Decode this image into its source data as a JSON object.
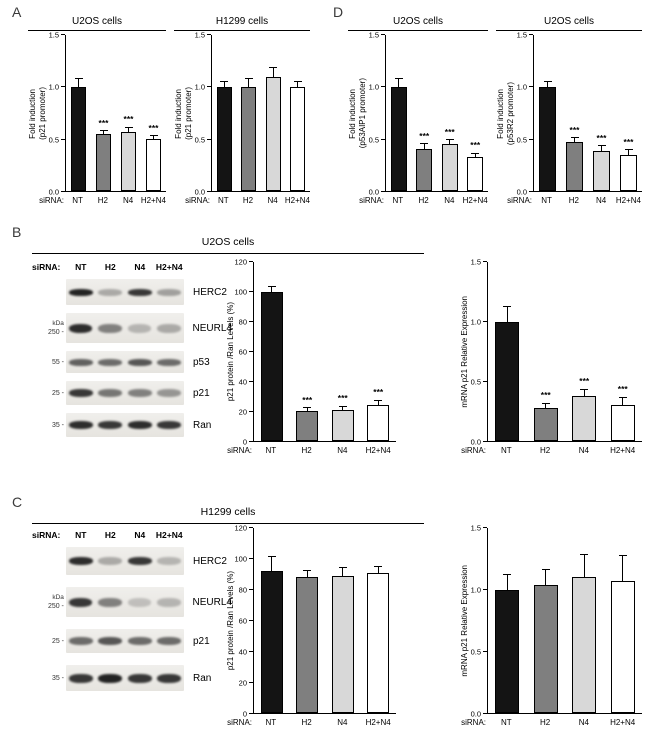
{
  "panels": {
    "A": {
      "label": "A"
    },
    "B": {
      "label": "B",
      "title": "U2OS cells"
    },
    "C": {
      "label": "C",
      "title": "H1299 cells"
    },
    "D": {
      "label": "D"
    }
  },
  "bar_colors": [
    "#141414",
    "#7f7f7f",
    "#d8d8d8",
    "#ffffff"
  ],
  "chart_data": [
    {
      "type": "bar",
      "panel": "A",
      "title": "U2OS cells",
      "ylabel_lines": [
        "Fold induction",
        "(p21 promoter)"
      ],
      "categories": [
        "NT",
        "H2",
        "N4",
        "H2+N4"
      ],
      "x_prefix": "siRNA:",
      "values": [
        1.0,
        0.55,
        0.57,
        0.5
      ],
      "errors": [
        0.08,
        0.03,
        0.04,
        0.03
      ],
      "sig": [
        "",
        "***",
        "***",
        "***"
      ],
      "ylim": [
        0,
        1.5
      ],
      "yticks": [
        0,
        0.5,
        1.0,
        1.5
      ],
      "ytick_format": "1dp"
    },
    {
      "type": "bar",
      "panel": "A",
      "title": "H1299 cells",
      "ylabel_lines": [
        "Fold induction",
        "(p21 promoter)"
      ],
      "categories": [
        "NT",
        "H2",
        "N4",
        "H2+N4"
      ],
      "x_prefix": "siRNA:",
      "values": [
        1.0,
        1.0,
        1.1,
        1.0
      ],
      "errors": [
        0.05,
        0.08,
        0.08,
        0.05
      ],
      "sig": [
        "",
        "",
        "",
        ""
      ],
      "ylim": [
        0,
        1.5
      ],
      "yticks": [
        0,
        0.5,
        1.0,
        1.5
      ],
      "ytick_format": "1dp"
    },
    {
      "type": "bar",
      "panel": "D",
      "title": "U2OS cells",
      "ylabel_lines": [
        "Fold induction",
        "(p53AIP1 promoter)"
      ],
      "categories": [
        "NT",
        "H2",
        "N4",
        "H2+N4"
      ],
      "x_prefix": "siRNA:",
      "values": [
        1.0,
        0.4,
        0.45,
        0.33
      ],
      "errors": [
        0.08,
        0.05,
        0.04,
        0.03
      ],
      "sig": [
        "",
        "***",
        "***",
        "***"
      ],
      "ylim": [
        0,
        1.5
      ],
      "yticks": [
        0,
        0.5,
        1.0,
        1.5
      ],
      "ytick_format": "1dp"
    },
    {
      "type": "bar",
      "panel": "D",
      "title": "U2OS cells",
      "ylabel_lines": [
        "Fold induction",
        "(p53R2 promoter)"
      ],
      "categories": [
        "NT",
        "H2",
        "N4",
        "H2+N4"
      ],
      "x_prefix": "siRNA:",
      "values": [
        1.0,
        0.47,
        0.38,
        0.35
      ],
      "errors": [
        0.05,
        0.04,
        0.05,
        0.04
      ],
      "sig": [
        "",
        "***",
        "***",
        "***"
      ],
      "ylim": [
        0,
        1.5
      ],
      "yticks": [
        0,
        0.5,
        1.0,
        1.5
      ],
      "ytick_format": "1dp"
    },
    {
      "type": "bar",
      "panel": "B",
      "title": "",
      "ylabel_lines": [
        "p21 protein /Ran Levels (%)"
      ],
      "categories": [
        "NT",
        "H2",
        "N4",
        "H2+N4"
      ],
      "x_prefix": "siRNA:",
      "values": [
        100,
        20,
        21,
        24
      ],
      "errors": [
        3,
        2,
        2,
        3
      ],
      "sig": [
        "",
        "***",
        "***",
        "***"
      ],
      "ylim": [
        0,
        120
      ],
      "yticks": [
        0,
        20,
        40,
        60,
        80,
        100,
        120
      ],
      "ytick_format": "int"
    },
    {
      "type": "bar",
      "panel": "B",
      "title": "",
      "ylabel_lines": [
        "mRNA p21 Relative Expression"
      ],
      "categories": [
        "NT",
        "H2",
        "N4",
        "H2+N4"
      ],
      "x_prefix": "siRNA:",
      "values": [
        1.0,
        0.28,
        0.38,
        0.3
      ],
      "errors": [
        0.12,
        0.03,
        0.05,
        0.06
      ],
      "sig": [
        "",
        "***",
        "***",
        "***"
      ],
      "ylim": [
        0,
        1.5
      ],
      "yticks": [
        0,
        0.5,
        1.0,
        1.5
      ],
      "ytick_format": "1dp"
    },
    {
      "type": "bar",
      "panel": "C",
      "title": "",
      "ylabel_lines": [
        "p21 protein /Ran Levels (%)"
      ],
      "categories": [
        "NT",
        "H2",
        "N4",
        "H2+N4"
      ],
      "x_prefix": "siRNA:",
      "values": [
        92,
        88,
        89,
        91
      ],
      "errors": [
        9,
        4,
        5,
        4
      ],
      "sig": [
        "",
        "",
        "",
        ""
      ],
      "ylim": [
        0,
        120
      ],
      "yticks": [
        0,
        20,
        40,
        60,
        80,
        100,
        120
      ],
      "ytick_format": "int"
    },
    {
      "type": "bar",
      "panel": "C",
      "title": "",
      "ylabel_lines": [
        "mRNA p21 Relative Expression"
      ],
      "categories": [
        "NT",
        "H2",
        "N4",
        "H2+N4"
      ],
      "x_prefix": "siRNA:",
      "values": [
        1.0,
        1.04,
        1.1,
        1.07
      ],
      "errors": [
        0.12,
        0.12,
        0.18,
        0.2
      ],
      "sig": [
        "",
        "",
        "",
        ""
      ],
      "ylim": [
        0,
        1.5
      ],
      "yticks": [
        0,
        0.5,
        1.0,
        1.5
      ],
      "ytick_format": "1dp"
    }
  ],
  "blots": [
    {
      "panel": "B",
      "header_prefix": "siRNA:",
      "lanes": [
        "NT",
        "H2",
        "N4",
        "H2+N4"
      ],
      "kda_label": "kDa",
      "rows": [
        {
          "label": "HERC2",
          "marker": "",
          "kda_above": false,
          "intensities": [
            0.95,
            0.3,
            0.85,
            0.35
          ],
          "strip_h": 26,
          "band_h": 7,
          "gap": 8
        },
        {
          "label": "NEURL4",
          "marker": "250",
          "kda_above": true,
          "intensities": [
            0.9,
            0.5,
            0.25,
            0.3
          ],
          "strip_h": 30,
          "band_h": 9,
          "gap": 8
        },
        {
          "label": "p53",
          "marker": "55",
          "kda_above": false,
          "intensities": [
            0.65,
            0.6,
            0.7,
            0.6
          ],
          "strip_h": 22,
          "band_h": 7,
          "gap": 8
        },
        {
          "label": "p21",
          "marker": "25",
          "kda_above": false,
          "intensities": [
            0.85,
            0.55,
            0.5,
            0.4
          ],
          "strip_h": 24,
          "band_h": 8,
          "gap": 8
        },
        {
          "label": "Ran",
          "marker": "35",
          "kda_above": false,
          "intensities": [
            0.9,
            0.85,
            0.9,
            0.85
          ],
          "strip_h": 24,
          "band_h": 8,
          "gap": 0
        }
      ]
    },
    {
      "panel": "C",
      "header_prefix": "siRNA:",
      "lanes": [
        "NT",
        "H2",
        "N4",
        "H2+N4"
      ],
      "kda_label": "kDa",
      "rows": [
        {
          "label": "HERC2",
          "marker": "",
          "kda_above": false,
          "intensities": [
            0.9,
            0.3,
            0.85,
            0.25
          ],
          "strip_h": 28,
          "band_h": 8,
          "gap": 12
        },
        {
          "label": "NEURL4",
          "marker": "250",
          "kda_above": true,
          "intensities": [
            0.85,
            0.5,
            0.2,
            0.25
          ],
          "strip_h": 30,
          "band_h": 9,
          "gap": 12
        },
        {
          "label": "p21",
          "marker": "25",
          "kda_above": false,
          "intensities": [
            0.6,
            0.7,
            0.6,
            0.6
          ],
          "strip_h": 24,
          "band_h": 8,
          "gap": 12
        },
        {
          "label": "Ran",
          "marker": "35",
          "kda_above": false,
          "intensities": [
            0.85,
            0.95,
            0.85,
            0.85
          ],
          "strip_h": 26,
          "band_h": 9,
          "gap": 0
        }
      ]
    }
  ]
}
